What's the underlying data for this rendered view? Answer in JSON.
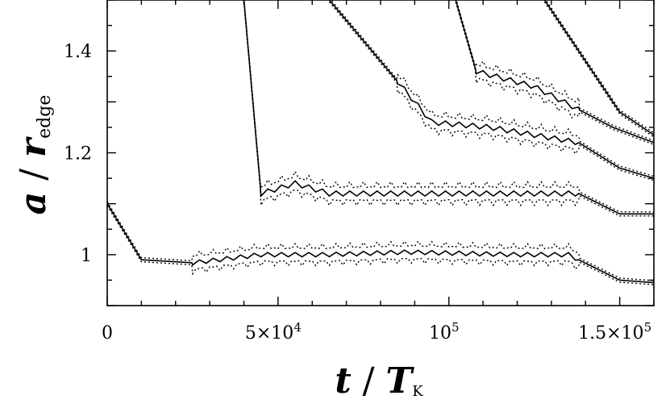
{
  "chart_data": {
    "type": "line",
    "xlabel": {
      "main": "t",
      "sep": " / ",
      "sym": "T",
      "sub": "K"
    },
    "ylabel": {
      "main": "a",
      "sep": " / ",
      "sym": "r",
      "sub": "edge"
    },
    "xlim": [
      0,
      160000
    ],
    "ylim": [
      0.9,
      1.5
    ],
    "x_ticks": [
      {
        "value": 0,
        "label": "0",
        "sup": ""
      },
      {
        "value": 50000,
        "label": "5×10",
        "sup": "4"
      },
      {
        "value": 100000,
        "label": "10",
        "sup": "5"
      },
      {
        "value": 150000,
        "label": "1.5×10",
        "sup": "5"
      }
    ],
    "y_ticks": [
      {
        "value": 1.0,
        "label": "1"
      },
      {
        "value": 1.2,
        "label": "1.2"
      },
      {
        "value": 1.4,
        "label": "1.4"
      }
    ],
    "grid": false,
    "series": [
      {
        "points": [
          [
            0,
            1.1
          ],
          [
            10000,
            0.99
          ],
          [
            25000,
            0.984
          ],
          [
            45000,
            1.0
          ],
          [
            64000,
            1.0
          ],
          [
            88000,
            1.005
          ],
          [
            120000,
            1.0
          ],
          [
            135000,
            1.0
          ],
          [
            150000,
            0.95
          ],
          [
            160000,
            0.945
          ]
        ],
        "osc": [
          {
            "from": 25000,
            "to": 138000,
            "amp": 0.012,
            "period": 4000
          }
        ]
      },
      {
        "points": [
          [
            40000,
            1.5
          ],
          [
            45000,
            1.12
          ],
          [
            55000,
            1.14
          ],
          [
            65000,
            1.12
          ],
          [
            95000,
            1.12
          ],
          [
            138000,
            1.12
          ],
          [
            150000,
            1.08
          ],
          [
            160000,
            1.08
          ]
        ],
        "osc": [
          {
            "from": 45000,
            "to": 138000,
            "amp": 0.014,
            "period": 4000
          }
        ]
      },
      {
        "points": [
          [
            65000,
            1.5
          ],
          [
            95000,
            1.26
          ],
          [
            112000,
            1.25
          ],
          [
            138000,
            1.22
          ],
          [
            150000,
            1.17
          ],
          [
            160000,
            1.15
          ]
        ],
        "osc": [
          {
            "from": 85000,
            "to": 138000,
            "amp": 0.014,
            "period": 4000
          }
        ]
      },
      {
        "points": [
          [
            102000,
            1.5
          ],
          [
            108000,
            1.36
          ],
          [
            125000,
            1.33
          ],
          [
            148000,
            1.25
          ],
          [
            160000,
            1.22
          ]
        ],
        "osc": [
          {
            "from": 108000,
            "to": 138000,
            "amp": 0.014,
            "period": 4000
          }
        ]
      },
      {
        "points": [
          [
            128000,
            1.5
          ],
          [
            150000,
            1.28
          ],
          [
            160000,
            1.235
          ]
        ],
        "osc": []
      }
    ]
  }
}
